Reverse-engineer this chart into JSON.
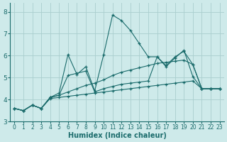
{
  "xlabel": "Humidex (Indice chaleur)",
  "xlim": [
    -0.5,
    23.5
  ],
  "ylim": [
    3.0,
    8.4
  ],
  "yticks": [
    3,
    4,
    5,
    6,
    7,
    8
  ],
  "xticks": [
    0,
    1,
    2,
    3,
    4,
    5,
    6,
    7,
    8,
    9,
    10,
    11,
    12,
    13,
    14,
    15,
    16,
    17,
    18,
    19,
    20,
    21,
    22,
    23
  ],
  "bg_color": "#ceeaea",
  "grid_color": "#aacece",
  "line_color": "#1a6b6b",
  "lines": [
    {
      "x": [
        0,
        1,
        2,
        3,
        4,
        5,
        6,
        7,
        8,
        9,
        10,
        11,
        12,
        13,
        14,
        15,
        16,
        17,
        18,
        19,
        20,
        21,
        22,
        23
      ],
      "y": [
        3.6,
        3.5,
        3.75,
        3.6,
        4.05,
        4.1,
        4.15,
        4.2,
        4.25,
        4.3,
        4.35,
        4.4,
        4.45,
        4.5,
        4.55,
        4.6,
        4.65,
        4.7,
        4.75,
        4.8,
        4.85,
        4.5,
        4.5,
        4.5
      ]
    },
    {
      "x": [
        0,
        1,
        2,
        3,
        4,
        5,
        6,
        7,
        8,
        9,
        10,
        11,
        12,
        13,
        14,
        15,
        16,
        17,
        18,
        19,
        20,
        21,
        22,
        23
      ],
      "y": [
        3.6,
        3.5,
        3.75,
        3.6,
        4.1,
        4.2,
        4.35,
        4.5,
        4.65,
        4.75,
        4.9,
        5.1,
        5.25,
        5.35,
        5.45,
        5.55,
        5.65,
        5.7,
        5.75,
        5.8,
        5.6,
        4.5,
        4.5,
        4.5
      ]
    },
    {
      "x": [
        0,
        1,
        2,
        3,
        4,
        5,
        6,
        7,
        8,
        9,
        10,
        11,
        12,
        13,
        14,
        15,
        16,
        17,
        18,
        19,
        20,
        21,
        22,
        23
      ],
      "y": [
        3.6,
        3.5,
        3.75,
        3.6,
        4.1,
        4.2,
        5.1,
        5.2,
        5.3,
        4.35,
        4.5,
        4.6,
        4.7,
        4.75,
        4.8,
        4.85,
        5.95,
        5.55,
        5.95,
        6.2,
        5.6,
        4.5,
        4.5,
        4.5
      ]
    },
    {
      "x": [
        0,
        1,
        2,
        3,
        4,
        5,
        6,
        7,
        8,
        9,
        10,
        11,
        12,
        13,
        14,
        15,
        16,
        17,
        18,
        19,
        20,
        21,
        22,
        23
      ],
      "y": [
        3.6,
        3.5,
        3.75,
        3.6,
        4.1,
        4.3,
        6.05,
        5.15,
        5.5,
        4.4,
        6.05,
        7.85,
        7.6,
        7.15,
        6.55,
        5.95,
        5.95,
        5.5,
        5.9,
        6.25,
        5.05,
        4.5,
        4.5,
        4.5
      ]
    }
  ]
}
